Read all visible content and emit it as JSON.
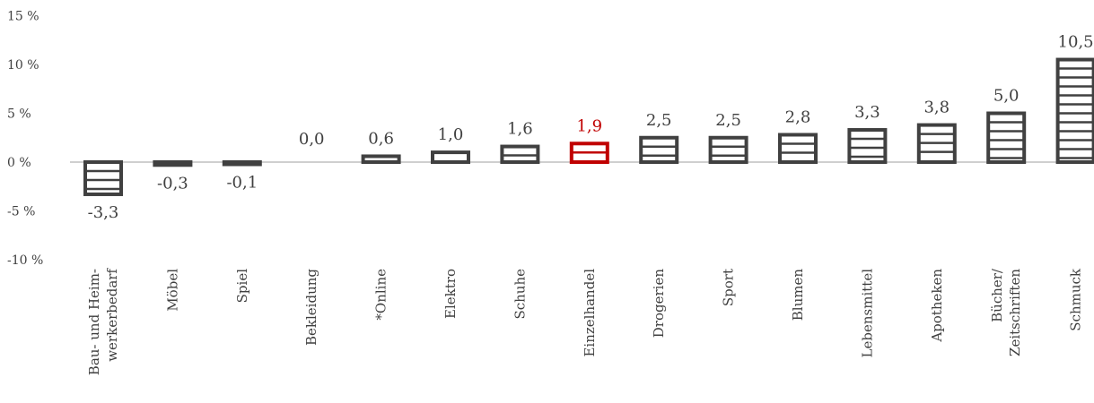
{
  "chart_data": {
    "type": "bar",
    "title": "",
    "xlabel": "",
    "ylabel": "",
    "ylim": [
      -10,
      15
    ],
    "yticks": [
      15,
      10,
      5,
      0,
      -5,
      -10
    ],
    "ytick_labels": [
      "15 %",
      "10 %",
      "5 %",
      "0 %",
      "-5 %",
      "-10 %"
    ],
    "grid": false,
    "categories": [
      [
        "Bau- und Heim-",
        "werkerbedarf"
      ],
      [
        "Möbel"
      ],
      [
        "Spiel"
      ],
      [
        "Bekleidung"
      ],
      [
        "*Online"
      ],
      [
        "Elektro"
      ],
      [
        "Schuhe"
      ],
      [
        "Einzelhandel"
      ],
      [
        "Drogerien"
      ],
      [
        "Sport"
      ],
      [
        "Blumen"
      ],
      [
        "Lebensmittel"
      ],
      [
        "Apotheken"
      ],
      [
        "Bücher/",
        "Zeitschriften"
      ],
      [
        "Schmuck"
      ]
    ],
    "values": [
      -3.3,
      -0.3,
      -0.1,
      0.0,
      0.6,
      1.0,
      1.6,
      1.9,
      2.5,
      2.5,
      2.8,
      3.3,
      3.8,
      5.0,
      10.5
    ],
    "value_labels": [
      "-3,3",
      "-0,3",
      "-0,1",
      "0,0",
      "0,6",
      "1,0",
      "1,6",
      "1,9",
      "2,5",
      "2,5",
      "2,8",
      "3,3",
      "3,8",
      "5,0",
      "10,5"
    ],
    "highlight_index": 7,
    "colors": {
      "bar": "#404040",
      "highlight": "#c00000",
      "axis": "#bfbfbf",
      "text": "#404040"
    }
  }
}
